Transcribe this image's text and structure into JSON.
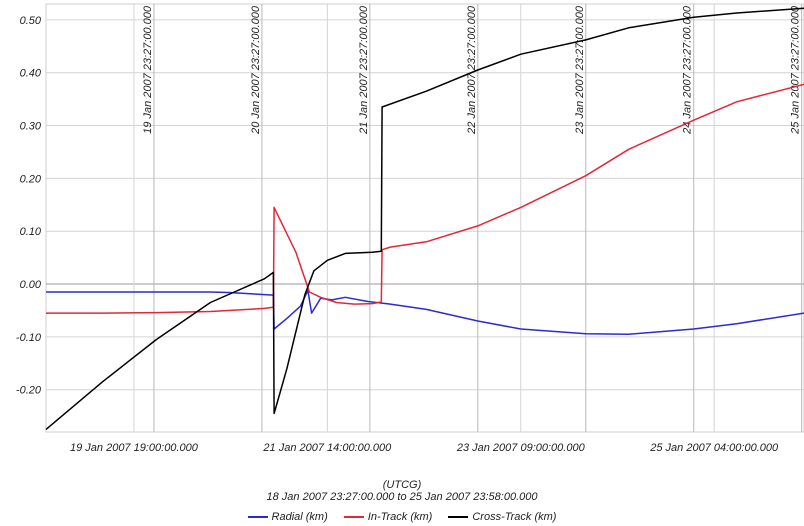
{
  "chart_data": {
    "type": "line",
    "title": "",
    "xlabel": "(UTCG)",
    "ylabel": "",
    "time_range": "18 Jan 2007 23:27:00.000  to  25 Jan 2007 23:58:00.000",
    "x_range": [
      "2007-01-18T23:27:00",
      "2007-01-25T23:58:00"
    ],
    "ylim": [
      -0.28,
      0.53
    ],
    "y_ticks": [
      0.5,
      0.4,
      0.3,
      0.2,
      0.1,
      0.0,
      -0.1,
      -0.2
    ],
    "y_tick_labels": [
      "0.50",
      "0.40",
      "0.30",
      "0.20",
      "0.10",
      "0.00",
      "-0.10",
      "-0.20"
    ],
    "x_ticks": [
      "2007-01-19T19:00:00",
      "2007-01-21T14:00:00",
      "2007-01-23T09:00:00",
      "2007-01-25T04:00:00"
    ],
    "x_tick_labels": [
      "19 Jan 2007 19:00:00.000",
      "21 Jan 2007 14:00:00.000",
      "23 Jan 2007 09:00:00.000",
      "25 Jan 2007 04:00:00.000"
    ],
    "event_lines": [
      "2007-01-19T23:27:00",
      "2007-01-20T23:27:00",
      "2007-01-21T23:27:00",
      "2007-01-22T23:27:00",
      "2007-01-23T23:27:00",
      "2007-01-24T23:27:00",
      "2007-01-25T23:27:00"
    ],
    "event_labels": [
      "19 Jan 2007 23:27:00.000",
      "20 Jan 2007 23:27:00.000",
      "21 Jan 2007 23:27:00.000",
      "22 Jan 2007 23:27:00.000",
      "23 Jan 2007 23:27:00.000",
      "24 Jan 2007 23:27:00.000",
      "25 Jan 2007 23:27:00.000"
    ],
    "grid": true,
    "legend_position": "bottom",
    "series": [
      {
        "name": "Radial (km)",
        "color": "#2b2bd0",
        "points": [
          [
            "2007-01-18T23:27:00",
            -0.015
          ],
          [
            "2007-01-19T12:00:00",
            -0.015
          ],
          [
            "2007-01-20T00:00:00",
            -0.015
          ],
          [
            "2007-01-20T12:00:00",
            -0.015
          ],
          [
            "2007-01-20T16:00:00",
            -0.016
          ],
          [
            "2007-01-21T00:00:00",
            -0.02
          ],
          [
            "2007-01-21T02:00:00",
            -0.021
          ],
          [
            "2007-01-21T02:10:00",
            -0.085
          ],
          [
            "2007-01-21T05:00:00",
            -0.065
          ],
          [
            "2007-01-21T08:00:00",
            -0.042
          ],
          [
            "2007-01-21T09:40:00",
            -0.012
          ],
          [
            "2007-01-21T10:30:00",
            -0.055
          ],
          [
            "2007-01-21T12:30:00",
            -0.027
          ],
          [
            "2007-01-21T15:00:00",
            -0.03
          ],
          [
            "2007-01-21T18:00:00",
            -0.025
          ],
          [
            "2007-01-21T23:00:00",
            -0.033
          ],
          [
            "2007-01-22T04:00:00",
            -0.038
          ],
          [
            "2007-01-22T12:00:00",
            -0.048
          ],
          [
            "2007-01-22T23:27:00",
            -0.07
          ],
          [
            "2007-01-23T09:00:00",
            -0.085
          ],
          [
            "2007-01-23T23:27:00",
            -0.094
          ],
          [
            "2007-01-24T09:00:00",
            -0.095
          ],
          [
            "2007-01-24T23:27:00",
            -0.085
          ],
          [
            "2007-01-25T09:00:00",
            -0.075
          ],
          [
            "2007-01-25T23:58:00",
            -0.055
          ]
        ]
      },
      {
        "name": "In-Track (km)",
        "color": "#e0283a",
        "points": [
          [
            "2007-01-18T23:27:00",
            -0.055
          ],
          [
            "2007-01-19T12:00:00",
            -0.055
          ],
          [
            "2007-01-20T00:00:00",
            -0.054
          ],
          [
            "2007-01-20T12:00:00",
            -0.052
          ],
          [
            "2007-01-21T00:00:00",
            -0.046
          ],
          [
            "2007-01-21T02:00:00",
            -0.044
          ],
          [
            "2007-01-21T02:10:00",
            0.145
          ],
          [
            "2007-01-21T07:00:00",
            0.06
          ],
          [
            "2007-01-21T10:00:00",
            -0.015
          ],
          [
            "2007-01-21T12:30:00",
            -0.025
          ],
          [
            "2007-01-21T16:00:00",
            -0.035
          ],
          [
            "2007-01-21T20:00:00",
            -0.038
          ],
          [
            "2007-01-22T00:00:00",
            -0.037
          ],
          [
            "2007-01-22T02:00:00",
            -0.034
          ],
          [
            "2007-01-22T02:10:00",
            0.065
          ],
          [
            "2007-01-22T04:00:00",
            0.07
          ],
          [
            "2007-01-22T12:00:00",
            0.08
          ],
          [
            "2007-01-22T23:27:00",
            0.11
          ],
          [
            "2007-01-23T09:00:00",
            0.145
          ],
          [
            "2007-01-23T23:27:00",
            0.205
          ],
          [
            "2007-01-24T09:00:00",
            0.255
          ],
          [
            "2007-01-24T23:27:00",
            0.31
          ],
          [
            "2007-01-25T09:00:00",
            0.345
          ],
          [
            "2007-01-25T23:58:00",
            0.378
          ]
        ]
      },
      {
        "name": "Cross-Track (km)",
        "color": "#000000",
        "points": [
          [
            "2007-01-18T23:27:00",
            -0.275
          ],
          [
            "2007-01-19T12:00:00",
            -0.185
          ],
          [
            "2007-01-20T00:00:00",
            -0.105
          ],
          [
            "2007-01-20T12:00:00",
            -0.035
          ],
          [
            "2007-01-21T00:00:00",
            0.01
          ],
          [
            "2007-01-21T02:00:00",
            0.022
          ],
          [
            "2007-01-21T02:10:00",
            -0.245
          ],
          [
            "2007-01-21T05:00:00",
            -0.16
          ],
          [
            "2007-01-21T09:00:00",
            -0.02
          ],
          [
            "2007-01-21T11:00:00",
            0.025
          ],
          [
            "2007-01-21T14:00:00",
            0.045
          ],
          [
            "2007-01-21T18:00:00",
            0.058
          ],
          [
            "2007-01-22T00:00:00",
            0.06
          ],
          [
            "2007-01-22T02:00:00",
            0.062
          ],
          [
            "2007-01-22T02:10:00",
            0.335
          ],
          [
            "2007-01-22T12:00:00",
            0.365
          ],
          [
            "2007-01-22T23:27:00",
            0.405
          ],
          [
            "2007-01-23T09:00:00",
            0.435
          ],
          [
            "2007-01-23T23:27:00",
            0.462
          ],
          [
            "2007-01-24T09:00:00",
            0.485
          ],
          [
            "2007-01-24T23:27:00",
            0.505
          ],
          [
            "2007-01-25T09:00:00",
            0.513
          ],
          [
            "2007-01-25T23:58:00",
            0.522
          ]
        ]
      }
    ]
  }
}
